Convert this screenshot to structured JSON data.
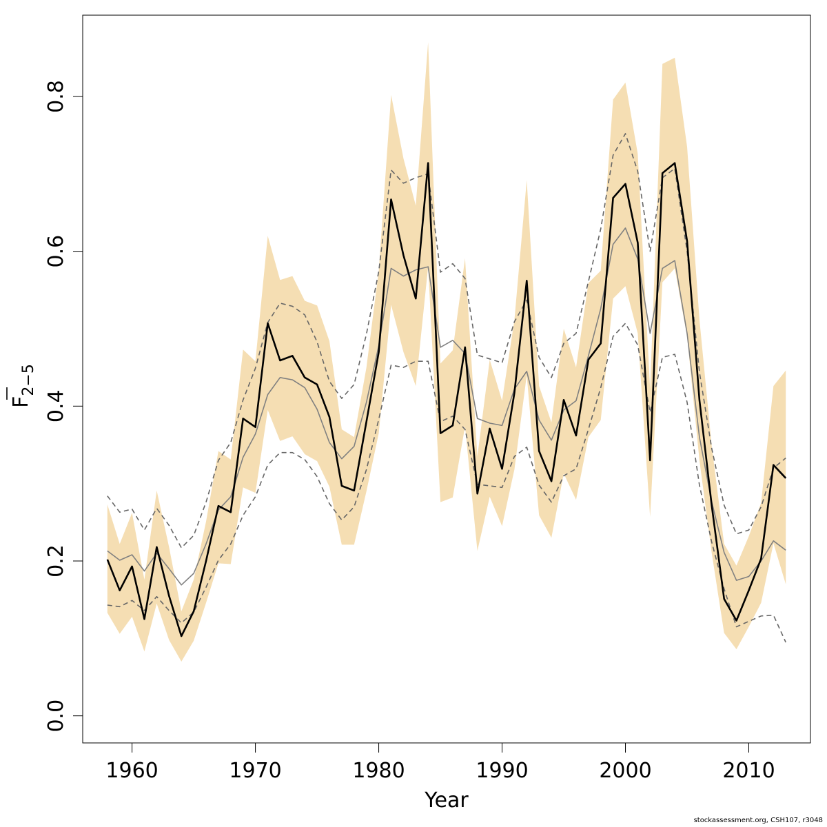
{
  "chart_data": {
    "type": "line",
    "xlabel": "Year",
    "ylabel": {
      "main": "F",
      "sub": "2−5"
    },
    "xlim": [
      1956.0,
      2015.0
    ],
    "ylim": [
      -0.035,
      0.905
    ],
    "x_ticks": [
      "1960",
      "1970",
      "1980",
      "1990",
      "2000",
      "2010"
    ],
    "y_ticks": [
      "0.0",
      "0.2",
      "0.4",
      "0.6",
      "0.8"
    ],
    "grid": false,
    "x": [
      1958,
      1959,
      1960,
      1961,
      1962,
      1963,
      1964,
      1965,
      1966,
      1967,
      1968,
      1969,
      1970,
      1971,
      1972,
      1973,
      1974,
      1975,
      1976,
      1977,
      1978,
      1979,
      1980,
      1981,
      1982,
      1983,
      1984,
      1985,
      1986,
      1987,
      1988,
      1989,
      1990,
      1991,
      1992,
      1993,
      1994,
      1995,
      1996,
      1997,
      1998,
      1999,
      2000,
      2001,
      2002,
      2003,
      2004,
      2005,
      2006,
      2007,
      2008,
      2009,
      2010,
      2011,
      2012,
      2013
    ],
    "series": [
      {
        "name": "",
        "style": "band",
        "color": "#f5deb3",
        "upper": [
          0.273,
          0.222,
          0.262,
          0.176,
          0.291,
          0.218,
          0.135,
          0.176,
          0.251,
          0.342,
          0.331,
          0.473,
          0.458,
          0.62,
          0.563,
          0.568,
          0.536,
          0.53,
          0.484,
          0.37,
          0.36,
          0.45,
          0.575,
          0.802,
          0.72,
          0.659,
          0.87,
          0.455,
          0.472,
          0.591,
          0.335,
          0.46,
          0.407,
          0.511,
          0.692,
          0.426,
          0.379,
          0.5,
          0.45,
          0.559,
          0.575,
          0.796,
          0.818,
          0.726,
          0.422,
          0.842,
          0.85,
          0.735,
          0.512,
          0.348,
          0.222,
          0.194,
          0.232,
          0.275,
          0.426,
          0.446
        ],
        "lower": [
          0.133,
          0.106,
          0.128,
          0.083,
          0.145,
          0.098,
          0.07,
          0.097,
          0.146,
          0.197,
          0.196,
          0.295,
          0.288,
          0.395,
          0.355,
          0.361,
          0.338,
          0.329,
          0.296,
          0.221,
          0.221,
          0.29,
          0.365,
          0.531,
          0.47,
          0.426,
          0.58,
          0.276,
          0.282,
          0.374,
          0.213,
          0.283,
          0.245,
          0.318,
          0.44,
          0.259,
          0.23,
          0.313,
          0.279,
          0.36,
          0.382,
          0.539,
          0.555,
          0.494,
          0.257,
          0.56,
          0.578,
          0.49,
          0.33,
          0.21,
          0.107,
          0.086,
          0.115,
          0.146,
          0.223,
          0.17
        ]
      },
      {
        "name": "",
        "style": "solid-black",
        "color": "#000000",
        "values": [
          0.202,
          0.162,
          0.193,
          0.125,
          0.218,
          0.155,
          0.103,
          0.135,
          0.2,
          0.271,
          0.263,
          0.384,
          0.373,
          0.507,
          0.459,
          0.465,
          0.437,
          0.428,
          0.386,
          0.297,
          0.291,
          0.38,
          0.47,
          0.667,
          0.595,
          0.539,
          0.714,
          0.365,
          0.375,
          0.476,
          0.287,
          0.371,
          0.319,
          0.417,
          0.562,
          0.342,
          0.303,
          0.408,
          0.362,
          0.46,
          0.481,
          0.669,
          0.687,
          0.611,
          0.33,
          0.701,
          0.714,
          0.613,
          0.408,
          0.271,
          0.151,
          0.123,
          0.162,
          0.203,
          0.324,
          0.307
        ]
      },
      {
        "name": "",
        "style": "solid-grey",
        "color": "#808080",
        "values": [
          0.213,
          0.201,
          0.208,
          0.187,
          0.21,
          0.19,
          0.169,
          0.184,
          0.222,
          0.266,
          0.283,
          0.334,
          0.364,
          0.415,
          0.437,
          0.434,
          0.424,
          0.396,
          0.353,
          0.332,
          0.348,
          0.405,
          0.478,
          0.578,
          0.568,
          0.576,
          0.58,
          0.476,
          0.485,
          0.468,
          0.384,
          0.378,
          0.375,
          0.422,
          0.445,
          0.382,
          0.356,
          0.395,
          0.407,
          0.465,
          0.526,
          0.609,
          0.63,
          0.59,
          0.494,
          0.578,
          0.588,
          0.494,
          0.36,
          0.276,
          0.211,
          0.175,
          0.18,
          0.2,
          0.226,
          0.214
        ]
      },
      {
        "name": "",
        "style": "dashed-upper",
        "color": "#666666",
        "values": [
          0.284,
          0.263,
          0.267,
          0.24,
          0.268,
          0.246,
          0.217,
          0.233,
          0.276,
          0.33,
          0.353,
          0.408,
          0.449,
          0.508,
          0.533,
          0.529,
          0.518,
          0.483,
          0.432,
          0.41,
          0.428,
          0.493,
          0.574,
          0.705,
          0.688,
          0.695,
          0.7,
          0.573,
          0.584,
          0.565,
          0.466,
          0.461,
          0.456,
          0.509,
          0.537,
          0.463,
          0.437,
          0.481,
          0.494,
          0.561,
          0.629,
          0.724,
          0.752,
          0.703,
          0.6,
          0.695,
          0.707,
          0.6,
          0.444,
          0.345,
          0.272,
          0.235,
          0.24,
          0.27,
          0.32,
          0.333
        ]
      },
      {
        "name": "",
        "style": "dashed-lower",
        "color": "#666666",
        "values": [
          0.143,
          0.141,
          0.149,
          0.136,
          0.154,
          0.136,
          0.12,
          0.134,
          0.166,
          0.201,
          0.222,
          0.259,
          0.283,
          0.324,
          0.34,
          0.34,
          0.331,
          0.309,
          0.274,
          0.253,
          0.27,
          0.318,
          0.383,
          0.453,
          0.45,
          0.458,
          0.458,
          0.38,
          0.387,
          0.37,
          0.299,
          0.297,
          0.295,
          0.335,
          0.347,
          0.298,
          0.276,
          0.31,
          0.319,
          0.37,
          0.424,
          0.49,
          0.507,
          0.479,
          0.392,
          0.463,
          0.467,
          0.405,
          0.298,
          0.224,
          0.164,
          0.115,
          0.122,
          0.129,
          0.13,
          0.095
        ]
      }
    ]
  },
  "footer": "stockassessment.org, CSH107, r3048"
}
